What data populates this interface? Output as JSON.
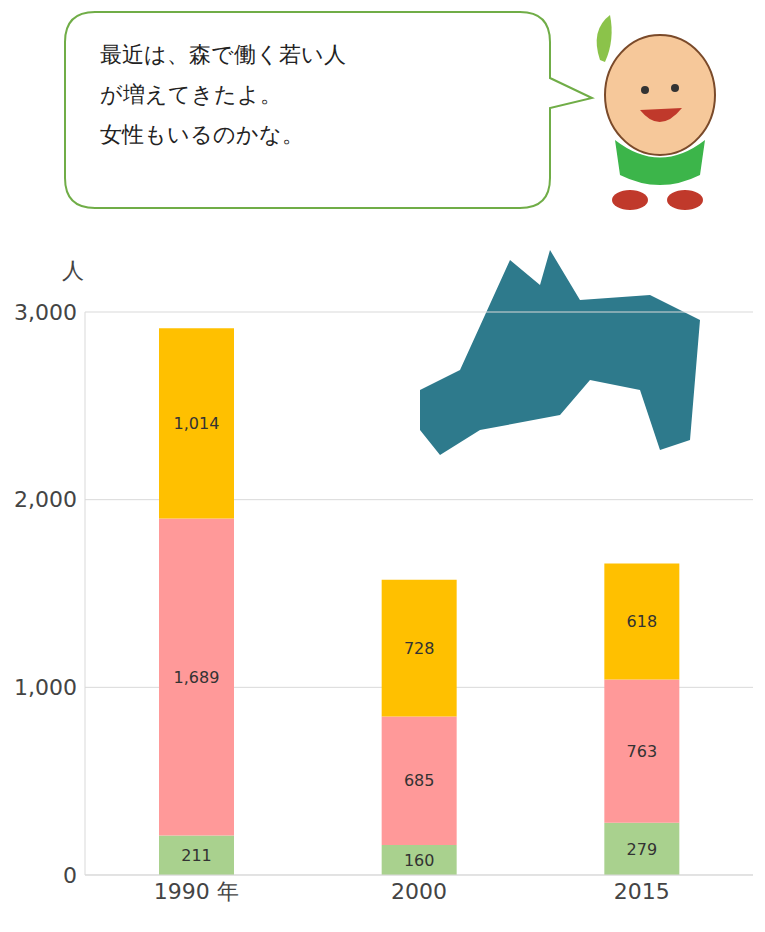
{
  "chart_data": {
    "type": "bar",
    "stacked": true,
    "data_labels": true,
    "grid": true,
    "y_label": "人",
    "annotation": [
      "最近は、森で働く若い人",
      "が増えてきたよ。",
      "女性もいるのかな。"
    ],
    "categories": [
      "1990 年",
      "2000",
      "2015"
    ],
    "series": [
      {
        "color": "#a9d18e",
        "values": [
          211,
          160,
          279
        ]
      },
      {
        "color": "#ff9999",
        "values": [
          1689,
          685,
          763
        ],
        "value_labels": [
          "1,689",
          "685",
          "763"
        ]
      },
      {
        "color": "#ffc000",
        "values": [
          1014,
          728,
          618
        ],
        "value_labels": [
          "1,014",
          "728",
          "618"
        ]
      }
    ],
    "ylim": [
      0,
      3000
    ],
    "yticks": [
      0,
      {
        "value": 1000,
        "label": "1,000"
      },
      {
        "value": 2000,
        "label": "2,000"
      },
      {
        "value": 3000,
        "label": "3,000"
      }
    ]
  }
}
